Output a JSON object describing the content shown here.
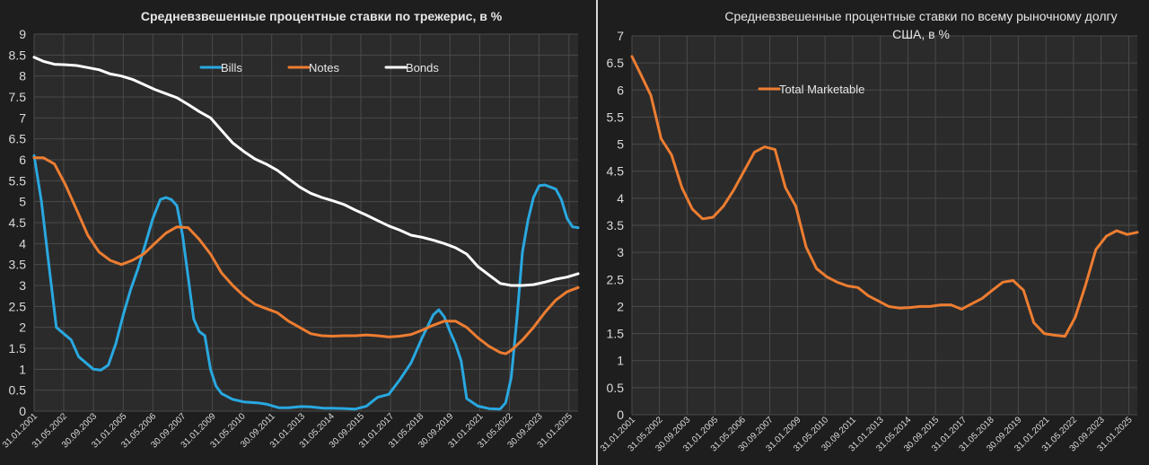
{
  "chart_data": [
    {
      "type": "line",
      "title": "Средневзвешенные процентные ставки по трежерис, в %",
      "ylim": [
        0,
        9
      ],
      "yticks": [
        "0",
        "0.5",
        "1",
        "1.5",
        "2",
        "2.5",
        "3",
        "3.5",
        "4",
        "4.5",
        "5",
        "5.5",
        "6",
        "6.5",
        "7",
        "7.5",
        "8",
        "8.5",
        "9"
      ],
      "xlim": [
        "2001-01-31",
        "2025-06-30"
      ],
      "xticks": [
        "31.01.2001",
        "31.05.2002",
        "30.09.2003",
        "31.01.2005",
        "31.05.2006",
        "30.09.2007",
        "31.01.2009",
        "31.05.2010",
        "30.09.2011",
        "31.01.2013",
        "31.05.2014",
        "30.09.2015",
        "31.01.2017",
        "31.05.2018",
        "30.09.2019",
        "31.01.2021",
        "31.05.2022",
        "30.09.2023",
        "31.01.2025"
      ],
      "grid": true,
      "legend_position": "top",
      "colors": {
        "background": "#2b2b2b",
        "grid": "#4a4a4a",
        "page": "#1e1e1e"
      },
      "series": [
        {
          "name": "Bills",
          "color": "#29a8e0",
          "points": [
            [
              "2001-01-31",
              6.1
            ],
            [
              "2001-05-31",
              5.0
            ],
            [
              "2001-09-30",
              3.5
            ],
            [
              "2002-01-31",
              2.0
            ],
            [
              "2002-05-31",
              1.85
            ],
            [
              "2002-09-30",
              1.7
            ],
            [
              "2003-01-31",
              1.3
            ],
            [
              "2003-05-31",
              1.15
            ],
            [
              "2003-09-30",
              1.0
            ],
            [
              "2004-01-31",
              0.98
            ],
            [
              "2004-05-31",
              1.1
            ],
            [
              "2004-09-30",
              1.6
            ],
            [
              "2005-01-31",
              2.3
            ],
            [
              "2005-05-31",
              2.9
            ],
            [
              "2005-09-30",
              3.4
            ],
            [
              "2006-01-31",
              4.0
            ],
            [
              "2006-05-31",
              4.6
            ],
            [
              "2006-09-30",
              5.05
            ],
            [
              "2006-12-31",
              5.1
            ],
            [
              "2007-03-31",
              5.05
            ],
            [
              "2007-06-30",
              4.9
            ],
            [
              "2007-09-30",
              4.2
            ],
            [
              "2007-12-31",
              3.2
            ],
            [
              "2008-03-31",
              2.2
            ],
            [
              "2008-06-30",
              1.9
            ],
            [
              "2008-09-30",
              1.8
            ],
            [
              "2008-12-31",
              1.0
            ],
            [
              "2009-03-31",
              0.6
            ],
            [
              "2009-06-30",
              0.42
            ],
            [
              "2009-12-31",
              0.28
            ],
            [
              "2010-06-30",
              0.22
            ],
            [
              "2011-01-31",
              0.2
            ],
            [
              "2011-06-30",
              0.17
            ],
            [
              "2012-01-31",
              0.08
            ],
            [
              "2012-06-30",
              0.08
            ],
            [
              "2013-01-31",
              0.11
            ],
            [
              "2013-06-30",
              0.1
            ],
            [
              "2014-01-31",
              0.07
            ],
            [
              "2014-06-30",
              0.07
            ],
            [
              "2015-01-31",
              0.06
            ],
            [
              "2015-06-30",
              0.05
            ],
            [
              "2015-12-31",
              0.12
            ],
            [
              "2016-06-30",
              0.33
            ],
            [
              "2016-12-31",
              0.4
            ],
            [
              "2017-06-30",
              0.75
            ],
            [
              "2017-12-31",
              1.15
            ],
            [
              "2018-06-30",
              1.75
            ],
            [
              "2018-12-31",
              2.3
            ],
            [
              "2019-03-31",
              2.42
            ],
            [
              "2019-06-30",
              2.25
            ],
            [
              "2019-09-30",
              1.9
            ],
            [
              "2019-12-31",
              1.6
            ],
            [
              "2020-03-31",
              1.2
            ],
            [
              "2020-06-30",
              0.3
            ],
            [
              "2020-12-31",
              0.12
            ],
            [
              "2021-06-30",
              0.06
            ],
            [
              "2021-12-31",
              0.05
            ],
            [
              "2022-03-31",
              0.2
            ],
            [
              "2022-06-30",
              0.8
            ],
            [
              "2022-09-30",
              2.2
            ],
            [
              "2022-12-31",
              3.8
            ],
            [
              "2023-03-31",
              4.55
            ],
            [
              "2023-06-30",
              5.1
            ],
            [
              "2023-09-30",
              5.38
            ],
            [
              "2023-12-31",
              5.4
            ],
            [
              "2024-03-31",
              5.35
            ],
            [
              "2024-06-30",
              5.3
            ],
            [
              "2024-09-30",
              5.05
            ],
            [
              "2024-12-31",
              4.6
            ],
            [
              "2025-03-31",
              4.4
            ],
            [
              "2025-06-30",
              4.38
            ]
          ]
        },
        {
          "name": "Notes",
          "color": "#ed7d31",
          "points": [
            [
              "2001-01-31",
              6.05
            ],
            [
              "2001-06-30",
              6.05
            ],
            [
              "2001-12-31",
              5.9
            ],
            [
              "2002-06-30",
              5.4
            ],
            [
              "2002-12-31",
              4.8
            ],
            [
              "2003-06-30",
              4.2
            ],
            [
              "2003-12-31",
              3.8
            ],
            [
              "2004-06-30",
              3.6
            ],
            [
              "2004-12-31",
              3.5
            ],
            [
              "2005-06-30",
              3.6
            ],
            [
              "2005-12-31",
              3.75
            ],
            [
              "2006-06-30",
              4.0
            ],
            [
              "2006-12-31",
              4.25
            ],
            [
              "2007-06-30",
              4.4
            ],
            [
              "2007-12-31",
              4.38
            ],
            [
              "2008-06-30",
              4.1
            ],
            [
              "2008-12-31",
              3.75
            ],
            [
              "2009-06-30",
              3.3
            ],
            [
              "2009-12-31",
              3.0
            ],
            [
              "2010-06-30",
              2.75
            ],
            [
              "2010-12-31",
              2.55
            ],
            [
              "2011-06-30",
              2.45
            ],
            [
              "2011-12-31",
              2.35
            ],
            [
              "2012-06-30",
              2.15
            ],
            [
              "2012-12-31",
              2.0
            ],
            [
              "2013-06-30",
              1.85
            ],
            [
              "2013-12-31",
              1.8
            ],
            [
              "2014-06-30",
              1.79
            ],
            [
              "2014-12-31",
              1.8
            ],
            [
              "2015-06-30",
              1.8
            ],
            [
              "2015-12-31",
              1.82
            ],
            [
              "2016-06-30",
              1.8
            ],
            [
              "2016-12-31",
              1.77
            ],
            [
              "2017-06-30",
              1.79
            ],
            [
              "2017-12-31",
              1.83
            ],
            [
              "2018-06-30",
              1.93
            ],
            [
              "2018-12-31",
              2.05
            ],
            [
              "2019-06-30",
              2.15
            ],
            [
              "2019-12-31",
              2.15
            ],
            [
              "2020-06-30",
              2.0
            ],
            [
              "2020-12-31",
              1.75
            ],
            [
              "2021-06-30",
              1.55
            ],
            [
              "2021-12-31",
              1.4
            ],
            [
              "2022-03-31",
              1.37
            ],
            [
              "2022-06-30",
              1.45
            ],
            [
              "2022-12-31",
              1.7
            ],
            [
              "2023-06-30",
              2.0
            ],
            [
              "2023-12-31",
              2.35
            ],
            [
              "2024-06-30",
              2.65
            ],
            [
              "2024-12-31",
              2.85
            ],
            [
              "2025-06-30",
              2.95
            ]
          ]
        },
        {
          "name": "Bonds",
          "color": "#ffffff",
          "points": [
            [
              "2001-01-31",
              8.45
            ],
            [
              "2001-06-30",
              8.35
            ],
            [
              "2001-12-31",
              8.28
            ],
            [
              "2002-06-30",
              8.27
            ],
            [
              "2002-12-31",
              8.25
            ],
            [
              "2003-06-30",
              8.2
            ],
            [
              "2003-12-31",
              8.15
            ],
            [
              "2004-06-30",
              8.05
            ],
            [
              "2004-12-31",
              8.0
            ],
            [
              "2005-06-30",
              7.92
            ],
            [
              "2005-12-31",
              7.8
            ],
            [
              "2006-06-30",
              7.68
            ],
            [
              "2006-12-31",
              7.58
            ],
            [
              "2007-06-30",
              7.48
            ],
            [
              "2007-12-31",
              7.32
            ],
            [
              "2008-06-30",
              7.15
            ],
            [
              "2008-12-31",
              7.0
            ],
            [
              "2009-06-30",
              6.7
            ],
            [
              "2009-12-31",
              6.4
            ],
            [
              "2010-06-30",
              6.2
            ],
            [
              "2010-12-31",
              6.02
            ],
            [
              "2011-06-30",
              5.9
            ],
            [
              "2011-12-31",
              5.75
            ],
            [
              "2012-06-30",
              5.55
            ],
            [
              "2012-12-31",
              5.35
            ],
            [
              "2013-06-30",
              5.2
            ],
            [
              "2013-12-31",
              5.1
            ],
            [
              "2014-06-30",
              5.02
            ],
            [
              "2014-12-31",
              4.93
            ],
            [
              "2015-06-30",
              4.8
            ],
            [
              "2015-12-31",
              4.68
            ],
            [
              "2016-06-30",
              4.55
            ],
            [
              "2016-12-31",
              4.42
            ],
            [
              "2017-06-30",
              4.32
            ],
            [
              "2017-12-31",
              4.2
            ],
            [
              "2018-06-30",
              4.15
            ],
            [
              "2018-12-31",
              4.08
            ],
            [
              "2019-06-30",
              4.0
            ],
            [
              "2019-12-31",
              3.9
            ],
            [
              "2020-06-30",
              3.75
            ],
            [
              "2020-12-31",
              3.45
            ],
            [
              "2021-06-30",
              3.25
            ],
            [
              "2021-12-31",
              3.05
            ],
            [
              "2022-06-30",
              3.0
            ],
            [
              "2022-12-31",
              3.0
            ],
            [
              "2023-06-30",
              3.02
            ],
            [
              "2023-12-31",
              3.08
            ],
            [
              "2024-06-30",
              3.15
            ],
            [
              "2024-12-31",
              3.2
            ],
            [
              "2025-06-30",
              3.28
            ]
          ]
        }
      ]
    },
    {
      "type": "line",
      "title": "Средневзвешенные процентные ставки по всему рыночному долгу США, в %",
      "title_lines": [
        "Средневзвешенные процентные ставки по всему рыночному долгу",
        "США, в %"
      ],
      "ylim": [
        0,
        7
      ],
      "yticks": [
        "0",
        "0.5",
        "1",
        "1.5",
        "2",
        "2.5",
        "3",
        "3.5",
        "4",
        "4.5",
        "5",
        "5.5",
        "6",
        "6.5",
        "7"
      ],
      "xlim": [
        "2001-01-31",
        "2025-06-30"
      ],
      "xticks": [
        "31.01.2001",
        "31.05.2002",
        "30.09.2003",
        "31.01.2005",
        "31.05.2006",
        "30.09.2007",
        "31.01.2009",
        "31.05.2010",
        "30.09.2011",
        "31.01.2013",
        "31.05.2014",
        "30.09.2015",
        "31.01.2017",
        "31.05.2018",
        "30.09.2019",
        "31.01.2021",
        "31.05.2022",
        "30.09.2023",
        "31.01.2025"
      ],
      "grid": true,
      "legend_position": "top-left",
      "colors": {
        "background": "#2b2b2b",
        "grid": "#4a4a4a",
        "page": "#1e1e1e"
      },
      "series": [
        {
          "name": "Total Marketable",
          "color": "#ed7d31",
          "points": [
            [
              "2001-01-31",
              6.62
            ],
            [
              "2001-06-30",
              6.3
            ],
            [
              "2001-12-31",
              5.9
            ],
            [
              "2002-06-30",
              5.1
            ],
            [
              "2002-12-31",
              4.8
            ],
            [
              "2003-06-30",
              4.2
            ],
            [
              "2003-12-31",
              3.8
            ],
            [
              "2004-06-30",
              3.62
            ],
            [
              "2004-12-31",
              3.65
            ],
            [
              "2005-06-30",
              3.85
            ],
            [
              "2005-12-31",
              4.15
            ],
            [
              "2006-06-30",
              4.5
            ],
            [
              "2006-12-31",
              4.85
            ],
            [
              "2007-06-30",
              4.95
            ],
            [
              "2007-12-31",
              4.9
            ],
            [
              "2008-06-30",
              4.2
            ],
            [
              "2008-12-31",
              3.85
            ],
            [
              "2009-06-30",
              3.1
            ],
            [
              "2009-12-31",
              2.7
            ],
            [
              "2010-06-30",
              2.55
            ],
            [
              "2010-12-31",
              2.45
            ],
            [
              "2011-06-30",
              2.38
            ],
            [
              "2011-12-31",
              2.35
            ],
            [
              "2012-06-30",
              2.2
            ],
            [
              "2012-12-31",
              2.1
            ],
            [
              "2013-06-30",
              2.0
            ],
            [
              "2013-12-31",
              1.97
            ],
            [
              "2014-06-30",
              1.98
            ],
            [
              "2014-12-31",
              2.0
            ],
            [
              "2015-06-30",
              2.0
            ],
            [
              "2015-12-31",
              2.03
            ],
            [
              "2016-06-30",
              2.03
            ],
            [
              "2016-12-31",
              1.95
            ],
            [
              "2017-06-30",
              2.05
            ],
            [
              "2017-12-31",
              2.15
            ],
            [
              "2018-06-30",
              2.3
            ],
            [
              "2018-12-31",
              2.45
            ],
            [
              "2019-06-30",
              2.48
            ],
            [
              "2019-12-31",
              2.3
            ],
            [
              "2020-06-30",
              1.7
            ],
            [
              "2020-12-31",
              1.5
            ],
            [
              "2021-06-30",
              1.47
            ],
            [
              "2021-12-31",
              1.45
            ],
            [
              "2022-06-30",
              1.8
            ],
            [
              "2022-12-31",
              2.4
            ],
            [
              "2023-06-30",
              3.05
            ],
            [
              "2023-12-31",
              3.3
            ],
            [
              "2024-06-30",
              3.4
            ],
            [
              "2024-12-31",
              3.33
            ],
            [
              "2025-06-30",
              3.37
            ]
          ]
        }
      ]
    }
  ]
}
